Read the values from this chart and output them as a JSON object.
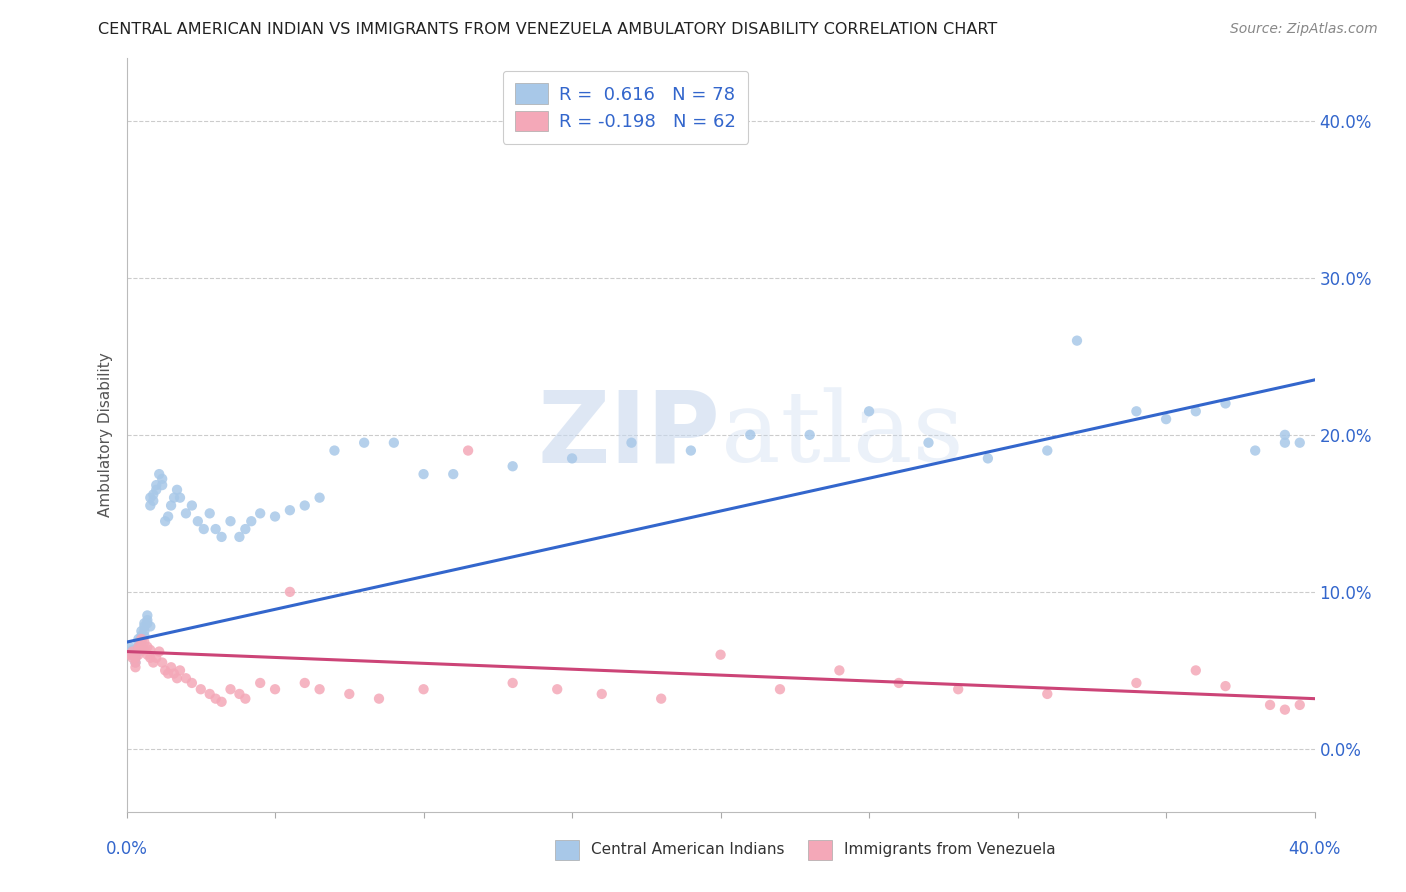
{
  "title": "CENTRAL AMERICAN INDIAN VS IMMIGRANTS FROM VENEZUELA AMBULATORY DISABILITY CORRELATION CHART",
  "source": "Source: ZipAtlas.com",
  "ylabel": "Ambulatory Disability",
  "blue_R": 0.616,
  "blue_N": 78,
  "pink_R": -0.198,
  "pink_N": 62,
  "blue_label": "Central American Indians",
  "pink_label": "Immigrants from Venezuela",
  "blue_marker_color": "#a8c8e8",
  "pink_marker_color": "#f4a8b8",
  "blue_line_color": "#3366cc",
  "pink_line_color": "#cc4477",
  "background_color": "#ffffff",
  "grid_color": "#cccccc",
  "xmin": 0.0,
  "xmax": 0.4,
  "ymin": -0.04,
  "ymax": 0.44,
  "yticks": [
    0.0,
    0.1,
    0.2,
    0.3,
    0.4
  ],
  "blue_trend_y0": 0.068,
  "blue_trend_y1": 0.235,
  "pink_trend_y0": 0.062,
  "pink_trend_y1": 0.032,
  "blue_scatter_x": [
    0.001,
    0.002,
    0.002,
    0.003,
    0.003,
    0.003,
    0.004,
    0.004,
    0.004,
    0.004,
    0.005,
    0.005,
    0.005,
    0.005,
    0.005,
    0.006,
    0.006,
    0.006,
    0.006,
    0.007,
    0.007,
    0.007,
    0.008,
    0.008,
    0.008,
    0.009,
    0.009,
    0.01,
    0.01,
    0.011,
    0.012,
    0.012,
    0.013,
    0.014,
    0.015,
    0.016,
    0.017,
    0.018,
    0.02,
    0.022,
    0.024,
    0.026,
    0.028,
    0.03,
    0.032,
    0.035,
    0.038,
    0.04,
    0.042,
    0.045,
    0.05,
    0.055,
    0.06,
    0.065,
    0.07,
    0.08,
    0.09,
    0.1,
    0.11,
    0.13,
    0.15,
    0.17,
    0.19,
    0.21,
    0.23,
    0.25,
    0.27,
    0.29,
    0.31,
    0.32,
    0.34,
    0.35,
    0.36,
    0.37,
    0.38,
    0.39,
    0.39,
    0.395
  ],
  "blue_scatter_y": [
    0.065,
    0.06,
    0.063,
    0.058,
    0.055,
    0.06,
    0.07,
    0.068,
    0.065,
    0.062,
    0.075,
    0.072,
    0.068,
    0.065,
    0.07,
    0.08,
    0.075,
    0.078,
    0.072,
    0.085,
    0.082,
    0.08,
    0.16,
    0.155,
    0.078,
    0.162,
    0.158,
    0.168,
    0.165,
    0.175,
    0.168,
    0.172,
    0.145,
    0.148,
    0.155,
    0.16,
    0.165,
    0.16,
    0.15,
    0.155,
    0.145,
    0.14,
    0.15,
    0.14,
    0.135,
    0.145,
    0.135,
    0.14,
    0.145,
    0.15,
    0.148,
    0.152,
    0.155,
    0.16,
    0.19,
    0.195,
    0.195,
    0.175,
    0.175,
    0.18,
    0.185,
    0.195,
    0.19,
    0.2,
    0.2,
    0.215,
    0.195,
    0.185,
    0.19,
    0.26,
    0.215,
    0.21,
    0.215,
    0.22,
    0.19,
    0.2,
    0.195,
    0.195
  ],
  "pink_scatter_x": [
    0.001,
    0.002,
    0.002,
    0.003,
    0.003,
    0.003,
    0.004,
    0.004,
    0.004,
    0.005,
    0.005,
    0.005,
    0.006,
    0.006,
    0.007,
    0.007,
    0.008,
    0.008,
    0.009,
    0.01,
    0.011,
    0.012,
    0.013,
    0.014,
    0.015,
    0.016,
    0.017,
    0.018,
    0.02,
    0.022,
    0.025,
    0.028,
    0.03,
    0.032,
    0.035,
    0.038,
    0.04,
    0.045,
    0.05,
    0.055,
    0.06,
    0.065,
    0.075,
    0.085,
    0.1,
    0.115,
    0.13,
    0.145,
    0.16,
    0.18,
    0.2,
    0.22,
    0.24,
    0.26,
    0.28,
    0.31,
    0.34,
    0.36,
    0.37,
    0.385,
    0.39,
    0.395
  ],
  "pink_scatter_y": [
    0.06,
    0.058,
    0.062,
    0.055,
    0.052,
    0.058,
    0.065,
    0.063,
    0.06,
    0.068,
    0.065,
    0.07,
    0.063,
    0.068,
    0.06,
    0.065,
    0.058,
    0.063,
    0.055,
    0.058,
    0.062,
    0.055,
    0.05,
    0.048,
    0.052,
    0.048,
    0.045,
    0.05,
    0.045,
    0.042,
    0.038,
    0.035,
    0.032,
    0.03,
    0.038,
    0.035,
    0.032,
    0.042,
    0.038,
    0.1,
    0.042,
    0.038,
    0.035,
    0.032,
    0.038,
    0.19,
    0.042,
    0.038,
    0.035,
    0.032,
    0.06,
    0.038,
    0.05,
    0.042,
    0.038,
    0.035,
    0.042,
    0.05,
    0.04,
    0.028,
    0.025,
    0.028
  ]
}
